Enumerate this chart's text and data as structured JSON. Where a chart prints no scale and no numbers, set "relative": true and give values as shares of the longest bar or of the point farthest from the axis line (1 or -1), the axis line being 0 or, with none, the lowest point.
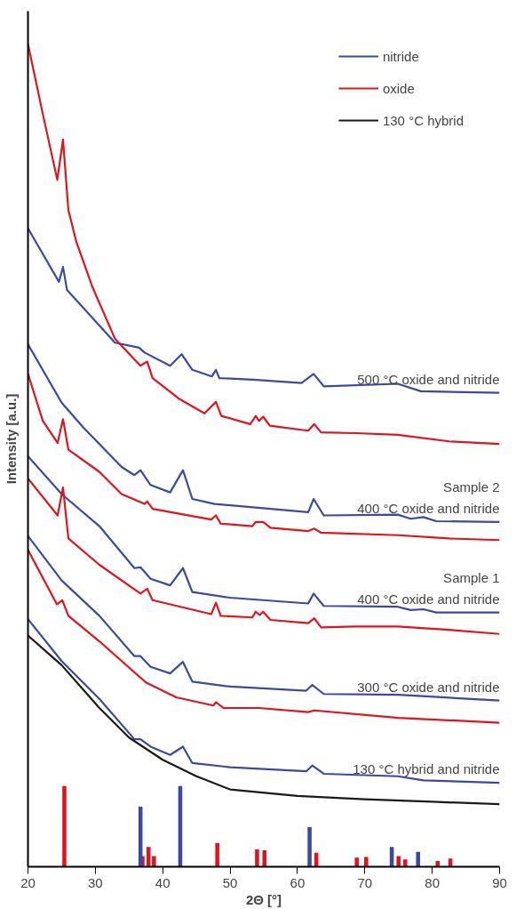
{
  "chart_data": {
    "type": "line",
    "relative": true,
    "xlabel": "2Θ [°]",
    "ylabel": "Intensity [a.u.]",
    "xlim": [
      20,
      90
    ],
    "xticks": [
      20,
      30,
      40,
      50,
      60,
      70,
      80,
      90
    ],
    "grid": false,
    "legend": "top right",
    "series": [
      {
        "name": "nitride",
        "color": "#3a4aa0",
        "x": [
          20,
          24.6,
          25.2,
          25.8,
          32.9,
          36.5,
          37.3,
          41.1,
          42.8,
          44.4,
          47.3,
          47.9,
          48.4,
          53.4,
          60.6,
          62.4,
          63.9,
          74.9,
          78.3,
          90
        ],
        "values": [
          0.776,
          0.711,
          0.729,
          0.701,
          0.637,
          0.631,
          0.625,
          0.609,
          0.623,
          0.604,
          0.596,
          0.604,
          0.594,
          0.592,
          0.588,
          0.599,
          0.584,
          0.587,
          0.578,
          0.576
        ]
      },
      {
        "name": "oxide",
        "color": "#e0141e",
        "x": [
          20,
          22.2,
          24.35,
          25.2,
          26,
          27.2,
          29.6,
          32.9,
          36.7,
          37.7,
          38.5,
          42.4,
          46.2,
          47.9,
          48.7,
          53,
          53.8,
          54.3,
          54.9,
          55.9,
          61.6,
          62.5,
          63.5,
          68.7,
          74.9,
          82.5,
          90
        ],
        "values": [
          1.0,
          0.915,
          0.835,
          0.884,
          0.798,
          0.759,
          0.704,
          0.642,
          0.609,
          0.614,
          0.594,
          0.569,
          0.551,
          0.565,
          0.548,
          0.538,
          0.548,
          0.542,
          0.547,
          0.536,
          0.53,
          0.538,
          0.528,
          0.527,
          0.525,
          0.517,
          0.514
        ]
      },
      {
        "color": "#3a4aa0",
        "x": [
          20,
          25,
          28.2,
          33.9,
          35.8,
          36.7,
          38.2,
          41.1,
          43,
          44.4,
          47.7,
          61.6,
          62.4,
          63.9,
          74.9,
          76.8,
          78.7,
          80.6,
          90
        ],
        "values": [
          0.635,
          0.564,
          0.534,
          0.486,
          0.476,
          0.482,
          0.464,
          0.455,
          0.482,
          0.447,
          0.441,
          0.431,
          0.447,
          0.427,
          0.428,
          0.423,
          0.425,
          0.42,
          0.419
        ]
      },
      {
        "color": "#e0141e",
        "x": [
          20,
          22.2,
          24.4,
          25.2,
          26,
          30.6,
          33.9,
          37.3,
          37.7,
          38.5,
          47.2,
          47.9,
          48.6,
          53.3,
          53.8,
          54.9,
          56,
          61.6,
          62.5,
          63.5,
          75,
          82.5,
          90
        ],
        "values": [
          0.599,
          0.542,
          0.515,
          0.544,
          0.507,
          0.48,
          0.453,
          0.441,
          0.444,
          0.435,
          0.422,
          0.427,
          0.417,
          0.414,
          0.419,
          0.419,
          0.412,
          0.408,
          0.411,
          0.406,
          0.403,
          0.399,
          0.397
        ]
      },
      {
        "color": "#3a4aa0",
        "x": [
          20,
          25,
          30.6,
          35.8,
          36.7,
          38.2,
          41.1,
          43,
          44.4,
          50,
          61.6,
          62.4,
          63.9,
          74.9,
          76.8,
          78.7,
          80.6,
          90
        ],
        "values": [
          0.499,
          0.453,
          0.414,
          0.363,
          0.364,
          0.35,
          0.342,
          0.363,
          0.334,
          0.327,
          0.32,
          0.332,
          0.317,
          0.316,
          0.312,
          0.313,
          0.309,
          0.309
        ]
      },
      {
        "color": "#e0141e",
        "x": [
          20,
          24.4,
          25.2,
          26,
          30.6,
          36.7,
          37.7,
          38.5,
          47.2,
          47.9,
          48.6,
          53.3,
          53.8,
          54.4,
          54.9,
          56,
          61.6,
          62.5,
          63.5,
          68.7,
          74.9,
          82.5,
          90
        ],
        "values": [
          0.472,
          0.427,
          0.461,
          0.399,
          0.367,
          0.332,
          0.338,
          0.324,
          0.307,
          0.321,
          0.305,
          0.303,
          0.31,
          0.306,
          0.31,
          0.3,
          0.296,
          0.302,
          0.291,
          0.292,
          0.292,
          0.288,
          0.283
        ]
      },
      {
        "color": "#3a4aa0",
        "x": [
          20,
          25,
          30.6,
          35.8,
          36.7,
          38.2,
          41.1,
          43,
          44.4,
          50,
          61.3,
          62.2,
          63.9,
          75,
          90
        ],
        "values": [
          0.402,
          0.348,
          0.305,
          0.256,
          0.256,
          0.243,
          0.235,
          0.249,
          0.225,
          0.219,
          0.214,
          0.221,
          0.21,
          0.209,
          0.202
        ]
      },
      {
        "color": "#e0141e",
        "x": [
          20,
          24.3,
          25.1,
          26,
          30.6,
          37.5,
          42,
          47.5,
          47.9,
          49,
          54.3,
          61.6,
          62.5,
          75,
          90
        ],
        "values": [
          0.385,
          0.319,
          0.324,
          0.305,
          0.274,
          0.224,
          0.206,
          0.196,
          0.2,
          0.193,
          0.193,
          0.188,
          0.19,
          0.181,
          0.175
        ]
      },
      {
        "color": "#3a4aa0",
        "x": [
          20,
          25,
          30.6,
          35.8,
          36.7,
          38.2,
          41.1,
          43,
          44.4,
          50,
          61.3,
          62.2,
          63.9,
          74.9,
          78.7,
          90
        ],
        "values": [
          0.301,
          0.25,
          0.204,
          0.155,
          0.155,
          0.146,
          0.136,
          0.146,
          0.126,
          0.121,
          0.116,
          0.123,
          0.113,
          0.11,
          0.105,
          0.102
        ]
      },
      {
        "name": "130 °C hybrid",
        "color": "#1a1a1a",
        "x": [
          20,
          25,
          30.6,
          35,
          40,
          45,
          50,
          60,
          70,
          80,
          90
        ],
        "values": [
          0.281,
          0.245,
          0.193,
          0.157,
          0.13,
          0.11,
          0.094,
          0.086,
          0.082,
          0.079,
          0.076
        ]
      },
      {
        "type": "bar",
        "color": "#e0141e",
        "x": [
          25.4,
          37.0,
          37.9,
          38.7,
          48.1,
          54.0,
          55.1,
          62.8,
          68.8,
          70.2,
          75.0,
          76.0,
          80.8,
          82.7
        ],
        "values": [
          0.098,
          0.013,
          0.024,
          0.013,
          0.029,
          0.021,
          0.02,
          0.017,
          0.011,
          0.012,
          0.013,
          0.009,
          0.007,
          0.01
        ]
      },
      {
        "type": "bar",
        "color": "#3a4aa0",
        "x": [
          36.7,
          42.6,
          61.8,
          74.0,
          77.9
        ],
        "values": [
          0.073,
          0.098,
          0.048,
          0.024,
          0.018
        ]
      }
    ],
    "annotations": [
      "500 °C oxide and nitride",
      "Sample 2\n400 °C oxide and nitride",
      "Sample 1\n400 °C oxide and nitride",
      "300 °C oxide and nitride",
      "130 °C hybrid and nitride"
    ]
  }
}
